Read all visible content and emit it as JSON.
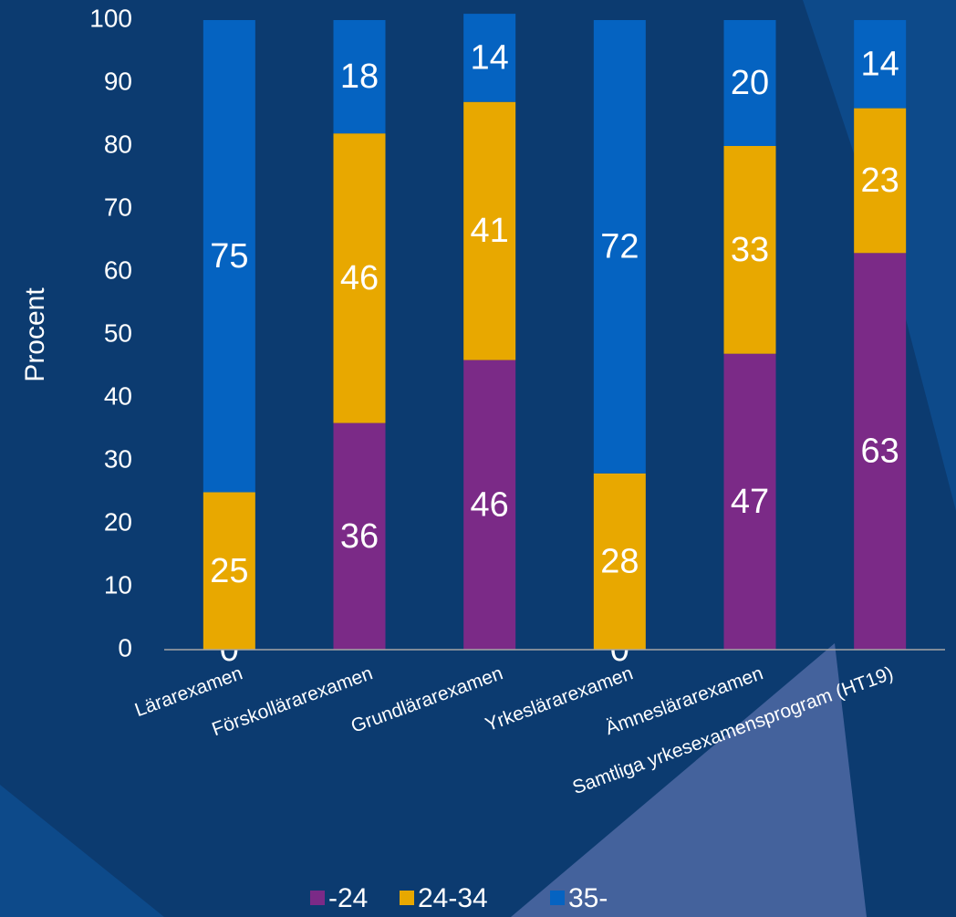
{
  "chart_data": {
    "type": "stacked_bar",
    "y_axis_label": "Procent",
    "categories": [
      "Lärarexamen",
      "Förskollärarexamen",
      "Grundlärarexamen",
      "Yrkeslärarexamen",
      "Ämneslärarexamen",
      "Samtliga yrkesexamensprogram (HT19)"
    ],
    "series": [
      {
        "name": "-24",
        "color": "#7b2a87",
        "values": [
          0,
          36,
          46,
          0,
          47,
          63
        ]
      },
      {
        "name": "24-34",
        "color": "#e8a800",
        "values": [
          25,
          46,
          41,
          28,
          33,
          23
        ]
      },
      {
        "name": "35-",
        "color": "#0563c1",
        "values": [
          75,
          18,
          14,
          72,
          20,
          14
        ]
      }
    ],
    "ylim": [
      0,
      100
    ],
    "yticks": [
      0,
      10,
      20,
      30,
      40,
      50,
      60,
      70,
      80,
      90,
      100
    ],
    "grid": false,
    "legend": "bottom"
  }
}
